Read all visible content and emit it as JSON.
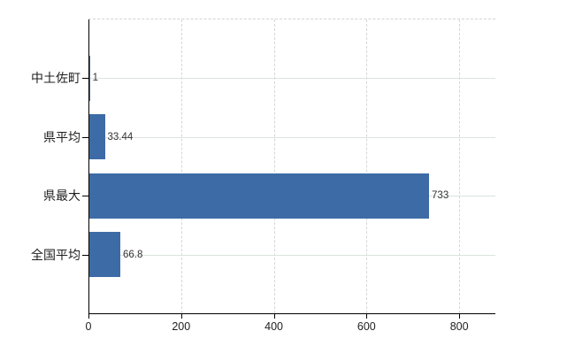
{
  "chart_data": {
    "type": "bar",
    "orientation": "horizontal",
    "title": "",
    "xlabel": "",
    "ylabel": "",
    "categories": [
      "中土佐町",
      "県平均",
      "県最大",
      "全国平均"
    ],
    "values": [
      1,
      33.44,
      733,
      66.8
    ],
    "value_labels": [
      "1",
      "33.44",
      "733",
      "66.8"
    ],
    "x_ticks": [
      0,
      200,
      400,
      600,
      800
    ],
    "x_tick_labels": [
      "0",
      "200",
      "400",
      "600",
      "800"
    ],
    "xlim": [
      0,
      878
    ],
    "grid": true,
    "legend": "none",
    "colors": {
      "bar": "#3d6ba6",
      "axis": "#000000",
      "x_gridline": "#d6d6d6",
      "row_gridline": "#dce3dc",
      "top_border": "#d4d4d4",
      "text": "#1f1f1f",
      "value_text": "#333333",
      "background": "#ffffff"
    }
  }
}
